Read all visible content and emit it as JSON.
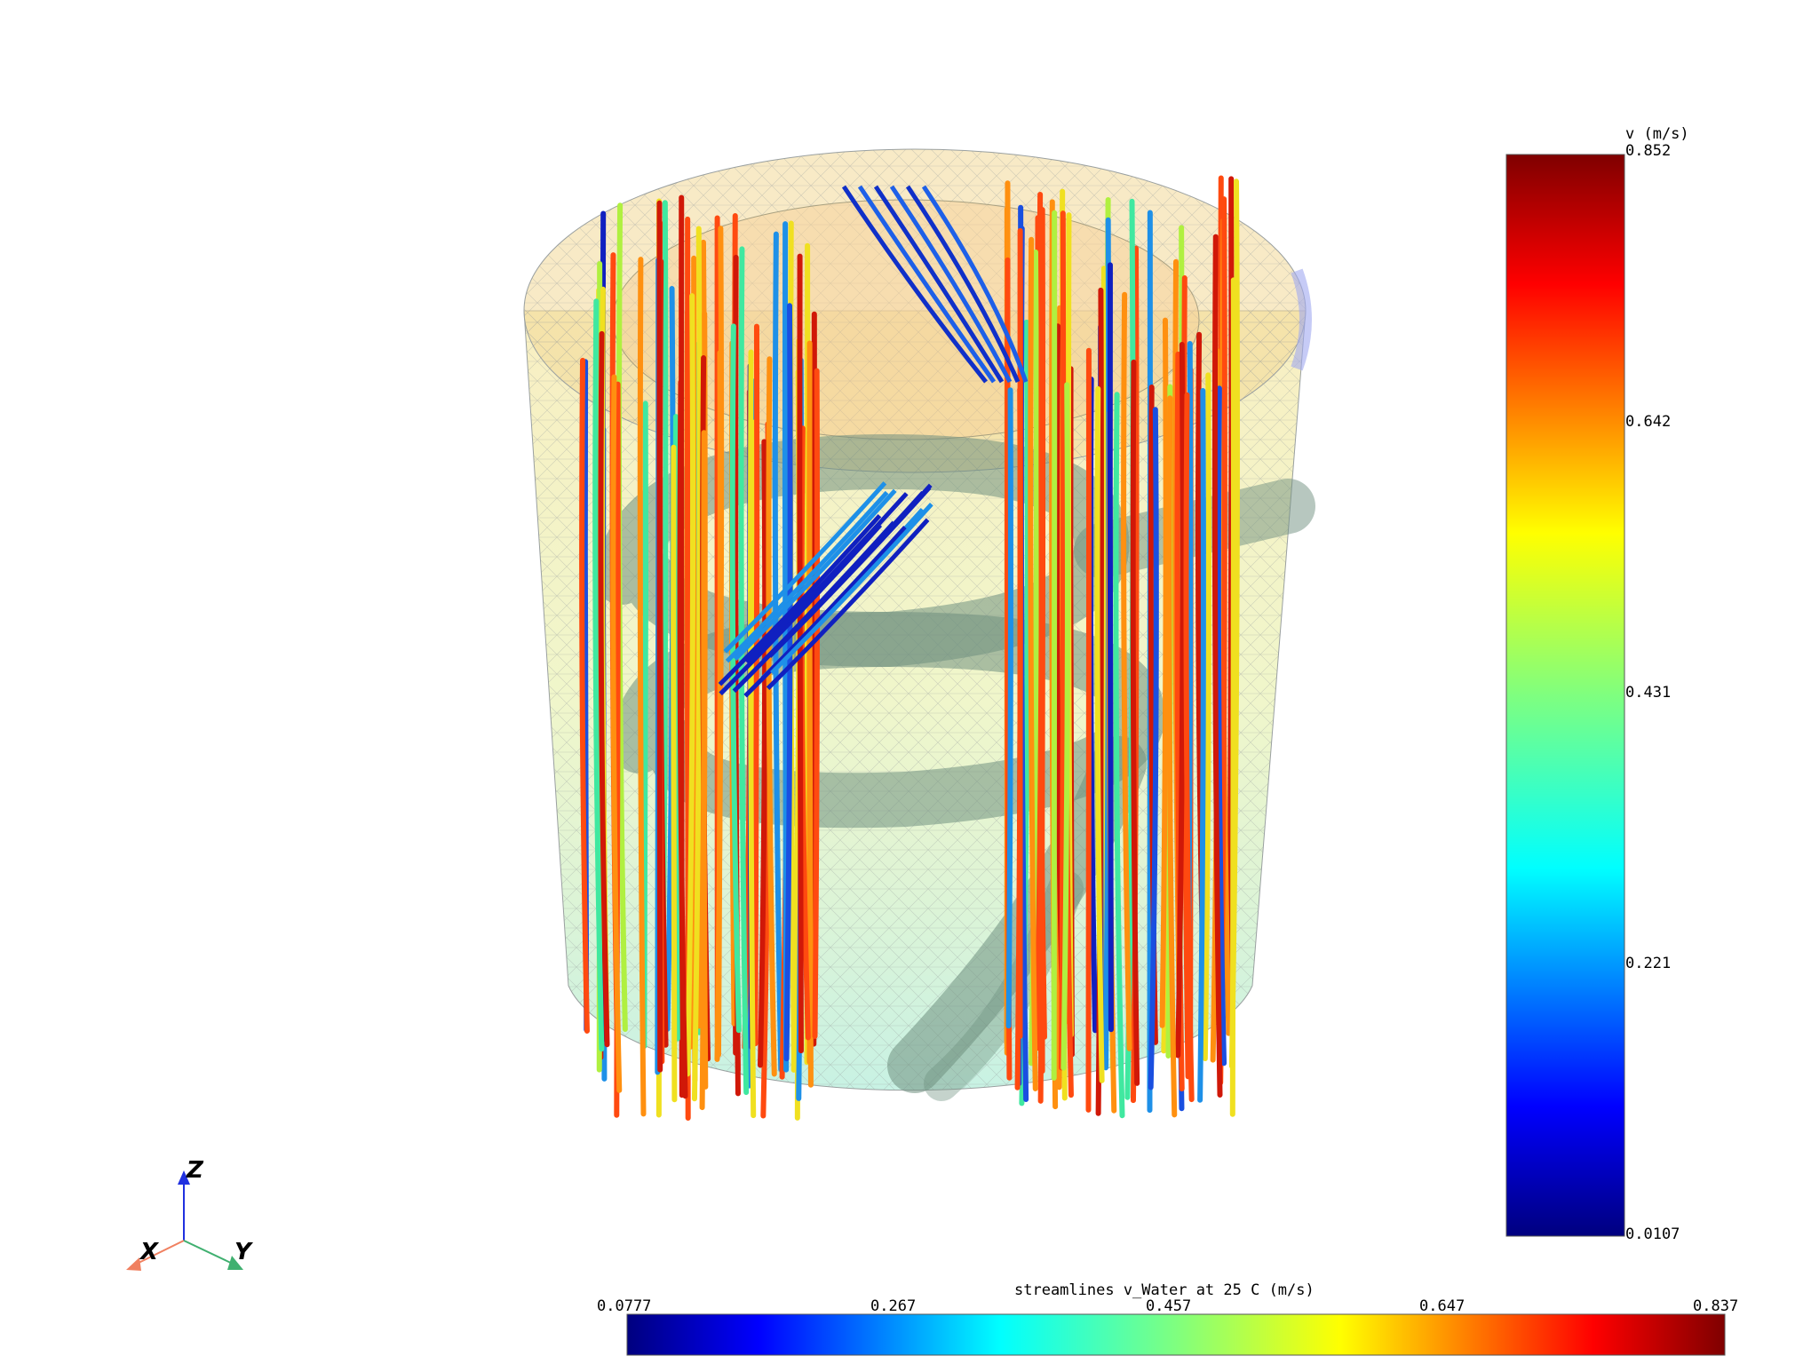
{
  "scene": {
    "vertical_legend": {
      "title": "v (m/s)",
      "ticks": [
        "0.852",
        "0.642",
        "0.431",
        "0.221",
        "0.0107"
      ],
      "colormap": "jet"
    },
    "horizontal_legend": {
      "title": "streamlines v_Water at 25 C (m/s)",
      "ticks": [
        "0.0777",
        "0.267",
        "0.457",
        "0.647",
        "0.837"
      ],
      "colormap": "jet"
    },
    "triad": {
      "x_label": "X",
      "y_label": "Y",
      "z_label": "Z",
      "x_color": "#f08060",
      "y_color": "#40b070",
      "z_color": "#2030e0"
    },
    "colors": {
      "tank_fill_top": "#f4e6a8",
      "tank_fill_bottom": "#b8f0d8",
      "coil": "#7a9a88",
      "mesh": "#9aa0a0"
    }
  }
}
